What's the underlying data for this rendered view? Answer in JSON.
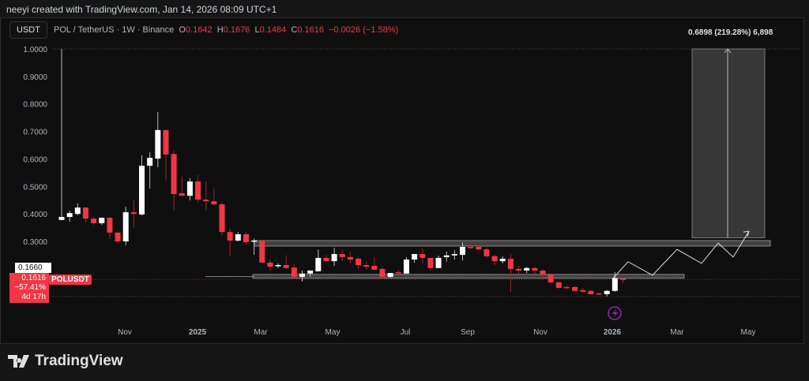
{
  "credit": "neeyi created with TradingView.com, Jan 14, 2026 08:09 UTC+1",
  "symbol_button": "USDT",
  "legend": {
    "title": "POL / TetherUS · 1W · Binance",
    "o_label": "O",
    "o": "0.1642",
    "h_label": "H",
    "h": "0.1676",
    "l_label": "L",
    "l": "0.1484",
    "c_label": "C",
    "c": "0.1616",
    "change": "−0.0026 (−1.58%)"
  },
  "measure_label": "0.6898 (219.28%) 6,898",
  "crosshair_price": "0.1660",
  "price_tag": {
    "price": "0.1616",
    "change": "−57.41%",
    "countdown": "4d 17h",
    "symbol": "POLUSDT"
  },
  "logo": "TradingView",
  "colors": {
    "up": "#ffffff",
    "down": "#f23645",
    "bg": "#0f0f0f",
    "purple": "#9c27b0"
  },
  "chart_data": {
    "type": "candlestick",
    "yticks": [
      "1.0000",
      "0.9000",
      "0.8000",
      "0.7000",
      "0.6000",
      "0.5000",
      "0.4000",
      "0.3000"
    ],
    "ytick_values": [
      1.0,
      0.9,
      0.8,
      0.7,
      0.6,
      0.5,
      0.4,
      0.3
    ],
    "xticks": [
      "Nov",
      "2025",
      "Mar",
      "May",
      "Jul",
      "Sep",
      "Nov",
      "2026",
      "Mar",
      "May"
    ],
    "ohlc": [
      [
        0.378,
        1.0,
        0.377,
        0.389
      ],
      [
        0.389,
        0.412,
        0.372,
        0.403
      ],
      [
        0.4,
        0.438,
        0.395,
        0.423
      ],
      [
        0.423,
        0.423,
        0.366,
        0.383
      ],
      [
        0.383,
        0.389,
        0.36,
        0.366
      ],
      [
        0.366,
        0.386,
        0.36,
        0.386
      ],
      [
        0.386,
        0.389,
        0.309,
        0.332
      ],
      [
        0.332,
        0.337,
        0.294,
        0.3
      ],
      [
        0.3,
        0.426,
        0.286,
        0.406
      ],
      [
        0.406,
        0.449,
        0.349,
        0.4
      ],
      [
        0.398,
        0.613,
        0.395,
        0.575
      ],
      [
        0.575,
        0.624,
        0.492,
        0.604
      ],
      [
        0.601,
        0.771,
        0.57,
        0.705
      ],
      [
        0.705,
        0.705,
        0.521,
        0.616
      ],
      [
        0.618,
        0.63,
        0.412,
        0.472
      ],
      [
        0.475,
        0.535,
        0.466,
        0.466
      ],
      [
        0.466,
        0.53,
        0.449,
        0.518
      ],
      [
        0.518,
        0.541,
        0.441,
        0.452
      ],
      [
        0.452,
        0.518,
        0.412,
        0.446
      ],
      [
        0.446,
        0.492,
        0.429,
        0.435
      ],
      [
        0.435,
        0.441,
        0.32,
        0.334
      ],
      [
        0.334,
        0.346,
        0.246,
        0.303
      ],
      [
        0.303,
        0.334,
        0.3,
        0.326
      ],
      [
        0.326,
        0.334,
        0.289,
        0.297
      ],
      [
        0.3,
        0.311,
        0.251,
        0.303
      ],
      [
        0.303,
        0.303,
        0.22,
        0.223
      ],
      [
        0.223,
        0.234,
        0.194,
        0.208
      ],
      [
        0.211,
        0.22,
        0.203,
        0.214
      ],
      [
        0.214,
        0.249,
        0.2,
        0.203
      ],
      [
        0.205,
        0.217,
        0.171,
        0.171
      ],
      [
        0.171,
        0.194,
        0.154,
        0.183
      ],
      [
        0.183,
        0.194,
        0.171,
        0.194
      ],
      [
        0.191,
        0.271,
        0.191,
        0.24
      ],
      [
        0.24,
        0.251,
        0.228,
        0.228
      ],
      [
        0.228,
        0.277,
        0.211,
        0.254
      ],
      [
        0.254,
        0.271,
        0.228,
        0.243
      ],
      [
        0.243,
        0.263,
        0.22,
        0.234
      ],
      [
        0.237,
        0.243,
        0.2,
        0.214
      ],
      [
        0.214,
        0.226,
        0.197,
        0.208
      ],
      [
        0.211,
        0.243,
        0.194,
        0.197
      ],
      [
        0.2,
        0.208,
        0.166,
        0.171
      ],
      [
        0.171,
        0.185,
        0.166,
        0.185
      ],
      [
        0.188,
        0.197,
        0.18,
        0.185
      ],
      [
        0.183,
        0.243,
        0.183,
        0.234
      ],
      [
        0.234,
        0.254,
        0.222,
        0.254
      ],
      [
        0.254,
        0.274,
        0.22,
        0.24
      ],
      [
        0.24,
        0.24,
        0.194,
        0.203
      ],
      [
        0.203,
        0.248,
        0.203,
        0.24
      ],
      [
        0.243,
        0.263,
        0.226,
        0.249
      ],
      [
        0.249,
        0.268,
        0.234,
        0.254
      ],
      [
        0.251,
        0.297,
        0.231,
        0.28
      ],
      [
        0.28,
        0.3,
        0.271,
        0.277
      ],
      [
        0.28,
        0.289,
        0.265,
        0.271
      ],
      [
        0.271,
        0.277,
        0.243,
        0.246
      ],
      [
        0.246,
        0.251,
        0.214,
        0.228
      ],
      [
        0.228,
        0.246,
        0.22,
        0.237
      ],
      [
        0.237,
        0.254,
        0.117,
        0.2
      ],
      [
        0.2,
        0.211,
        0.183,
        0.194
      ],
      [
        0.194,
        0.208,
        0.185,
        0.203
      ],
      [
        0.203,
        0.208,
        0.183,
        0.194
      ],
      [
        0.194,
        0.197,
        0.16,
        0.18
      ],
      [
        0.18,
        0.185,
        0.148,
        0.151
      ],
      [
        0.151,
        0.154,
        0.128,
        0.131
      ],
      [
        0.134,
        0.14,
        0.128,
        0.131
      ],
      [
        0.134,
        0.137,
        0.117,
        0.12
      ],
      [
        0.123,
        0.131,
        0.114,
        0.117
      ],
      [
        0.12,
        0.123,
        0.106,
        0.108
      ],
      [
        0.111,
        0.114,
        0.106,
        0.108
      ],
      [
        0.108,
        0.123,
        0.1,
        0.12
      ],
      [
        0.12,
        0.188,
        0.117,
        0.166
      ],
      [
        0.1642,
        0.1676,
        0.1484,
        0.1616
      ]
    ],
    "resistance_zone": [
      0.283,
      0.303
    ],
    "support_zone": [
      0.166,
      0.18
    ],
    "projection": [
      0.166,
      0.226,
      0.177,
      0.271,
      0.22,
      0.294,
      0.243,
      0.337
    ]
  }
}
